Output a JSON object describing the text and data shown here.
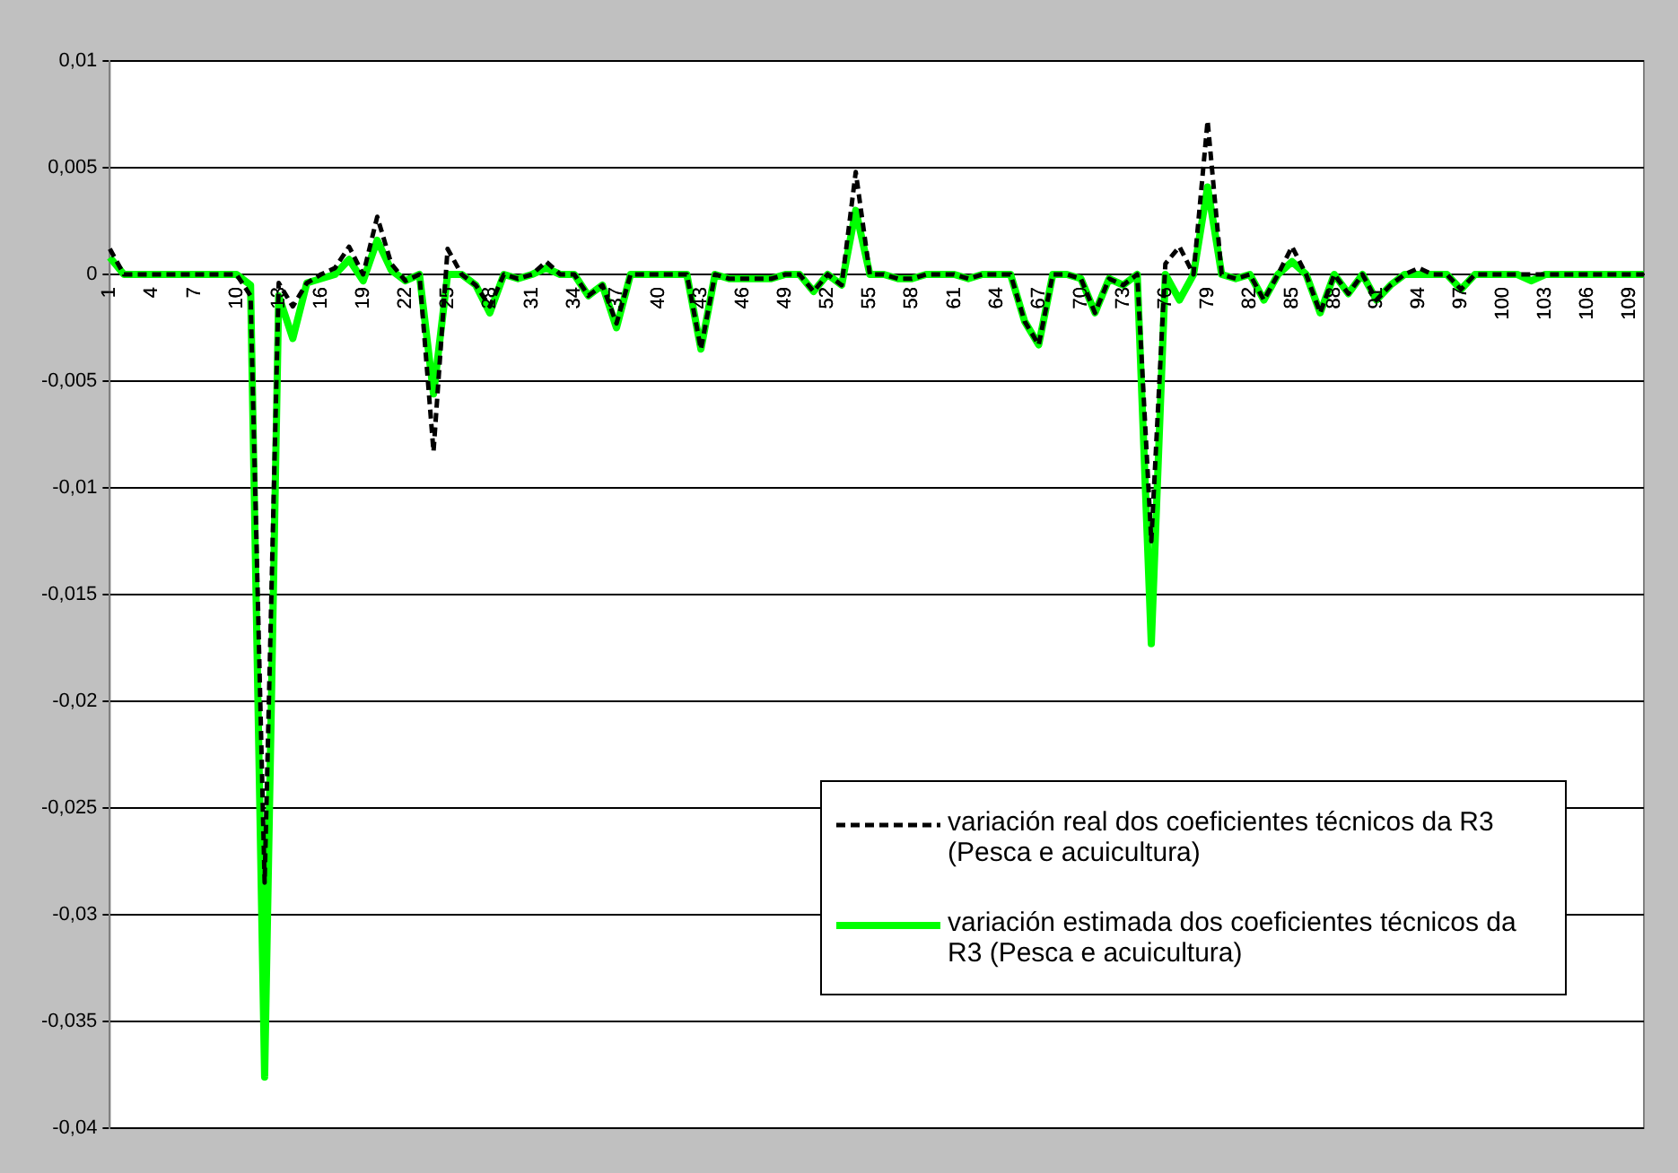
{
  "chart_data": {
    "type": "line",
    "categories": [
      "1",
      null,
      null,
      "4",
      null,
      null,
      "7",
      null,
      null,
      "10",
      null,
      null,
      "13",
      null,
      null,
      "16",
      null,
      null,
      "19",
      null,
      null,
      "22",
      null,
      null,
      "25",
      null,
      null,
      "28",
      null,
      null,
      "31",
      null,
      null,
      "34",
      null,
      null,
      "37",
      null,
      null,
      "40",
      null,
      null,
      "43",
      null,
      null,
      "46",
      null,
      null,
      "49",
      null,
      null,
      "52",
      null,
      null,
      "55",
      null,
      null,
      "58",
      null,
      null,
      "61",
      null,
      null,
      "64",
      null,
      null,
      "67",
      null,
      null,
      "70",
      null,
      null,
      "73",
      null,
      null,
      "76",
      null,
      null,
      "79",
      null,
      null,
      "82",
      null,
      null,
      "85",
      null,
      null,
      "88",
      null,
      null,
      "91",
      null,
      null,
      "94",
      null,
      null,
      "97",
      null,
      null,
      "100",
      null,
      null,
      "103",
      null,
      null,
      "106",
      null,
      null,
      "109",
      null
    ],
    "series": [
      {
        "name": "variación real dos coeficientes técnicos da R3 (Pesca e acuicultura)",
        "color": "#000000",
        "line_style": "dashed",
        "values": [
          0.0012,
          0,
          0,
          0,
          0,
          0,
          0,
          0,
          0,
          0,
          -0.001,
          -0.0285,
          -0.0004,
          -0.0015,
          -0.0004,
          0,
          0.0003,
          0.0013,
          0,
          0.0027,
          0.0005,
          -0.0003,
          0,
          -0.0083,
          0.0012,
          0,
          -0.0005,
          -0.0015,
          0,
          -0.0002,
          0,
          0.0006,
          0,
          0,
          -0.001,
          -0.0005,
          -0.0023,
          0,
          0,
          0,
          0,
          0,
          -0.0035,
          0,
          -0.0002,
          -0.0002,
          -0.0002,
          -0.0002,
          0,
          0,
          -0.0008,
          0,
          -0.0005,
          0.0048,
          0,
          0,
          -0.0002,
          -0.0002,
          0,
          0,
          0,
          -0.0002,
          0,
          0,
          0,
          -0.0022,
          -0.0033,
          0,
          0,
          -0.0002,
          -0.0018,
          -0.0002,
          -0.0005,
          0,
          -0.0125,
          0.0005,
          0.0013,
          0,
          0.0072,
          0,
          -0.0002,
          0,
          -0.0012,
          0,
          0.0013,
          0,
          -0.0018,
          0,
          -0.0009,
          0,
          -0.0012,
          -0.0005,
          0,
          0.0003,
          0,
          0,
          -0.0007,
          0,
          0,
          0,
          0,
          0,
          0,
          0,
          0,
          0,
          0,
          0,
          0,
          0
        ]
      },
      {
        "name": "variación estimada dos coeficientes técnicos da R3 (Pesca e acuicultura)",
        "color": "#00ff00",
        "line_style": "solid",
        "values": [
          0.0008,
          0,
          0,
          0,
          0,
          0,
          0,
          0,
          0,
          0,
          -0.0005,
          -0.0376,
          -0.001,
          -0.003,
          -0.0004,
          -0.0002,
          0,
          0.0007,
          -0.0003,
          0.0016,
          0.0002,
          -0.0003,
          0,
          -0.0056,
          0,
          0,
          -0.0005,
          -0.0018,
          0,
          -0.0002,
          0,
          0.0003,
          0,
          0,
          -0.001,
          -0.0005,
          -0.0025,
          0,
          0,
          0,
          0,
          0,
          -0.0035,
          0,
          -0.0002,
          -0.0002,
          -0.0002,
          -0.0002,
          0,
          0,
          -0.0008,
          0,
          -0.0005,
          0.003,
          0,
          0,
          -0.0002,
          -0.0002,
          0,
          0,
          0,
          -0.0002,
          0,
          0,
          0,
          -0.0022,
          -0.0033,
          0,
          0,
          -0.0002,
          -0.0018,
          -0.0002,
          -0.0005,
          0,
          -0.0173,
          0,
          -0.0012,
          0,
          0.0041,
          0,
          -0.0002,
          0,
          -0.0012,
          0,
          0.0006,
          0,
          -0.0018,
          0,
          -0.0009,
          0,
          -0.0012,
          -0.0005,
          0,
          0,
          0,
          0,
          -0.0007,
          0,
          0,
          0,
          0,
          -0.0003,
          0,
          0,
          0,
          0,
          0,
          0,
          0,
          0
        ]
      }
    ],
    "ylim": [
      -0.04,
      0.01
    ],
    "yticks": [
      {
        "value": -0.04,
        "label": "-0,04"
      },
      {
        "value": -0.035,
        "label": "-0,035"
      },
      {
        "value": -0.03,
        "label": "-0,03"
      },
      {
        "value": -0.025,
        "label": "-0,025"
      },
      {
        "value": -0.02,
        "label": "-0,02"
      },
      {
        "value": -0.015,
        "label": "-0,015"
      },
      {
        "value": -0.01,
        "label": "-0,01"
      },
      {
        "value": -0.005,
        "label": "-0,005"
      },
      {
        "value": 0,
        "label": "0"
      },
      {
        "value": 0.005,
        "label": "0,005"
      },
      {
        "value": 0.01,
        "label": "0,01"
      }
    ],
    "grid": "y",
    "legend": "bottom right",
    "marker": "none"
  }
}
